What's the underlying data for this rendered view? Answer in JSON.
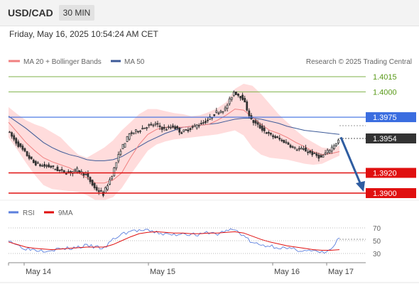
{
  "header": {
    "symbol": "USD/CAD",
    "timeframe": "30 MIN",
    "timestamp": "Friday, May 16, 2025 10:54:24 AM CET"
  },
  "legend": {
    "ma20_label": "MA 20 + Bollinger Bands",
    "ma50_label": "MA 50",
    "credit": "Research © 2025 Trading Central",
    "rsi_label": "RSI",
    "rsi_ma_label": "9MA"
  },
  "colors": {
    "ma20": "#f08080",
    "bollinger_fill": "#ffd0d0",
    "ma50": "#3d5a98",
    "bull_candle": "#ffffff",
    "bear_candle": "#333333",
    "green_level": "#7fb24a",
    "blue_level": "#3a6de0",
    "red_level": "#e01010",
    "current_price": "#333333",
    "arrow": "#2f5da1",
    "rsi": "#5b7fdd",
    "rsi_ma": "#e01010"
  },
  "chart_data": {
    "type": "candlestick",
    "instrument": "USD/CAD",
    "interval": "30 MIN",
    "ylim": [
      1.3892,
      1.4024
    ],
    "x_labels": [
      "May 14",
      "May 15",
      "May 16",
      "May 17"
    ],
    "horizontal_levels": [
      {
        "value": 1.4015,
        "label": "1.4015",
        "style": "green-line"
      },
      {
        "value": 1.4,
        "label": "1.4000",
        "style": "green-line"
      },
      {
        "value": 1.3975,
        "label": "1.3975",
        "style": "blue-tag"
      },
      {
        "value": 1.3954,
        "label": "1.3954",
        "style": "current-price-tag"
      },
      {
        "value": 1.392,
        "label": "1.3920",
        "style": "red-tag"
      },
      {
        "value": 1.39,
        "label": "1.3900",
        "style": "red-tag"
      }
    ],
    "candle_path": [
      1.3962,
      1.395,
      1.394,
      1.393,
      1.3927,
      1.3926,
      1.3922,
      1.392,
      1.3923,
      1.3918,
      1.3905,
      1.3899,
      1.3918,
      1.3943,
      1.3958,
      1.3962,
      1.3966,
      1.3968,
      1.3963,
      1.3966,
      1.396,
      1.3964,
      1.3968,
      1.3972,
      1.398,
      1.3983,
      1.4,
      1.3994,
      1.3972,
      1.3965,
      1.3958,
      1.3954,
      1.395,
      1.3944,
      1.3943,
      1.3939,
      1.3935,
      1.3943,
      1.3952
    ],
    "ma20": [
      1.397,
      1.396,
      1.395,
      1.3942,
      1.3935,
      1.3931,
      1.3928,
      1.3925,
      1.392,
      1.3915,
      1.391,
      1.391,
      1.3913,
      1.392,
      1.3935,
      1.3948,
      1.3958,
      1.3963,
      1.3965,
      1.3965,
      1.3965,
      1.3966,
      1.3967,
      1.3968,
      1.3972,
      1.3977,
      1.3983,
      1.3982,
      1.3975,
      1.3968,
      1.3962,
      1.3959,
      1.3955,
      1.395,
      1.3946,
      1.3941,
      1.3938,
      1.3939,
      1.3941
    ],
    "ma50": [
      1.3976,
      1.397,
      1.3964,
      1.3957,
      1.395,
      1.3945,
      1.3941,
      1.3938,
      1.3936,
      1.3933,
      1.3932,
      1.3932,
      1.3933,
      1.3936,
      1.3941,
      1.3946,
      1.3951,
      1.3955,
      1.3959,
      1.3962,
      1.3965,
      1.3966,
      1.3967,
      1.3968,
      1.3969,
      1.3971,
      1.3973,
      1.3974,
      1.3974,
      1.3973,
      1.3971,
      1.3969,
      1.3966,
      1.3964,
      1.3962,
      1.3961,
      1.396,
      1.3959,
      1.3958
    ],
    "bollinger_upper": [
      1.3985,
      1.3978,
      1.3972,
      1.3968,
      1.3965,
      1.396,
      1.3955,
      1.3946,
      1.3938,
      1.3935,
      1.394,
      1.3945,
      1.3952,
      1.3962,
      1.397,
      1.3978,
      1.3983,
      1.3983,
      1.3981,
      1.3979,
      1.3978,
      1.3976,
      1.3977,
      1.398,
      1.3984,
      1.399,
      1.4003,
      1.4008,
      1.4006,
      1.3998,
      1.3988,
      1.3978,
      1.397,
      1.3962,
      1.3955,
      1.395,
      1.3945,
      1.3944,
      1.3947
    ],
    "bollinger_lower": [
      1.3955,
      1.3943,
      1.393,
      1.3918,
      1.3908,
      1.3904,
      1.3903,
      1.3902,
      1.3901,
      1.3898,
      1.3893,
      1.3893,
      1.3896,
      1.3905,
      1.3918,
      1.393,
      1.3942,
      1.3948,
      1.3951,
      1.3953,
      1.3954,
      1.3955,
      1.3956,
      1.3957,
      1.3958,
      1.396,
      1.3962,
      1.3957,
      1.3945,
      1.3938,
      1.3935,
      1.3934,
      1.3933,
      1.3931,
      1.3929,
      1.3928,
      1.3929,
      1.3933,
      1.3937
    ],
    "projection": {
      "from": 1.3954,
      "to": 1.39
    },
    "rsi": {
      "ylim": [
        25,
        75
      ],
      "levels": [
        70,
        50,
        30
      ],
      "values": [
        52,
        43,
        38,
        36,
        35,
        36,
        37,
        38,
        40,
        42,
        40,
        38,
        52,
        60,
        65,
        66,
        65,
        63,
        60,
        59,
        62,
        60,
        59,
        63,
        60,
        66,
        67,
        58,
        46,
        43,
        42,
        40,
        37,
        36,
        35,
        33,
        31,
        35,
        55
      ],
      "ma9": [
        48,
        44,
        40,
        38,
        37,
        36,
        37,
        38,
        39,
        40,
        40,
        40,
        44,
        50,
        56,
        61,
        63,
        64,
        63,
        62,
        62,
        61,
        61,
        62,
        62,
        63,
        64,
        62,
        57,
        52,
        48,
        45,
        42,
        40,
        38,
        36,
        35,
        35,
        36
      ]
    }
  }
}
